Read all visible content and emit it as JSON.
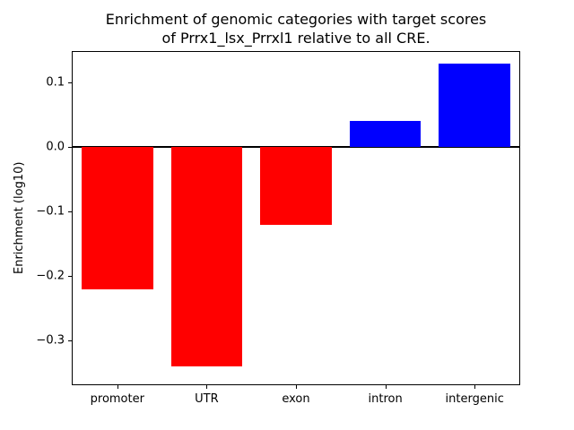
{
  "chart_data": {
    "type": "bar",
    "title": "Enrichment of genomic categories with target scores\nof Prrx1_lsx_Prrxl1 relative to all CRE.",
    "ylabel": "Enrichment (log10)",
    "xlabel": "",
    "categories": [
      "promoter",
      "UTR",
      "exon",
      "intron",
      "intergenic"
    ],
    "values": [
      -0.22,
      -0.34,
      -0.12,
      0.04,
      0.13
    ],
    "positive_color": "#0000ff",
    "negative_color": "#ff0000",
    "ylim": [
      -0.3675,
      0.1475
    ],
    "yticks": [
      0.1,
      0.0,
      -0.1,
      -0.2,
      -0.3
    ],
    "zero_line": true,
    "grid": false,
    "legend": null,
    "bar_width_fraction": 0.8
  }
}
